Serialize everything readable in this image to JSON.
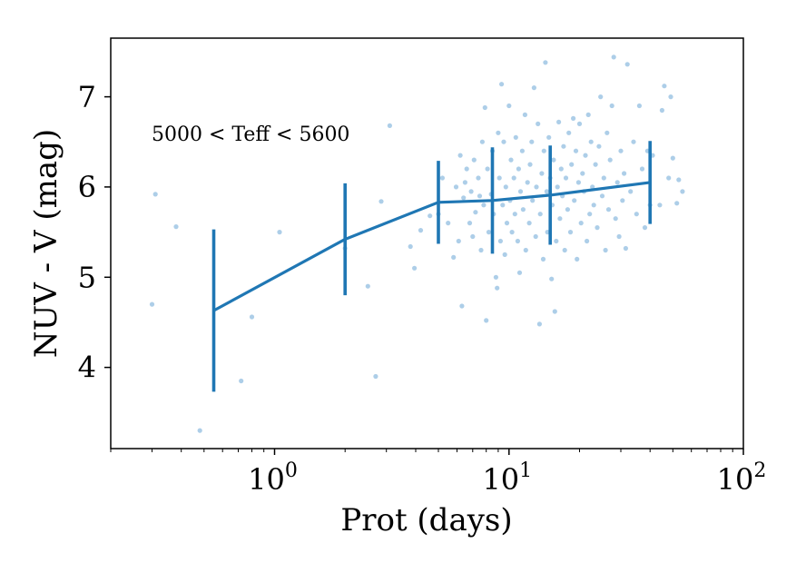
{
  "chart_data": {
    "type": "scatter",
    "xlabel": "Prot (days)",
    "ylabel": "NUV - V (mag)",
    "xscale": "log",
    "xlim": [
      0.2,
      100
    ],
    "ylim": [
      3.1,
      7.65
    ],
    "x_ticks": [
      {
        "value": 1,
        "base": "10",
        "exp": "0"
      },
      {
        "value": 10,
        "base": "10",
        "exp": "1"
      },
      {
        "value": 100,
        "base": "10",
        "exp": "2"
      }
    ],
    "y_ticks": [
      4,
      5,
      6,
      7
    ],
    "annotation": "5000 < Teff < 5600",
    "colors": {
      "series": "#1f77b4",
      "points": "#6aa6d6"
    },
    "points": [
      [
        0.3,
        4.7
      ],
      [
        0.31,
        5.92
      ],
      [
        0.38,
        5.56
      ],
      [
        0.48,
        3.3
      ],
      [
        0.72,
        3.85
      ],
      [
        0.8,
        4.56
      ],
      [
        1.05,
        5.5
      ],
      [
        2.0,
        5.32
      ],
      [
        2.5,
        4.9
      ],
      [
        2.7,
        3.9
      ],
      [
        2.85,
        5.84
      ],
      [
        3.1,
        6.68
      ],
      [
        3.8,
        5.34
      ],
      [
        3.95,
        5.1
      ],
      [
        4.2,
        5.52
      ],
      [
        4.6,
        5.68
      ],
      [
        5.0,
        5.7
      ],
      [
        5.2,
        6.1
      ],
      [
        5.5,
        5.6
      ],
      [
        5.8,
        5.22
      ],
      [
        5.95,
        6.0
      ],
      [
        6.1,
        5.4
      ],
      [
        6.2,
        6.35
      ],
      [
        6.3,
        4.68
      ],
      [
        6.4,
        5.88
      ],
      [
        6.5,
        6.05
      ],
      [
        6.6,
        6.2
      ],
      [
        6.8,
        5.6
      ],
      [
        6.9,
        5.95
      ],
      [
        7.0,
        5.45
      ],
      [
        7.1,
        6.3
      ],
      [
        7.2,
        5.72
      ],
      [
        7.4,
        6.1
      ],
      [
        7.5,
        5.9
      ],
      [
        7.6,
        5.3
      ],
      [
        7.7,
        6.5
      ],
      [
        7.8,
        5.8
      ],
      [
        7.9,
        6.88
      ],
      [
        8.0,
        4.52
      ],
      [
        8.1,
        6.2
      ],
      [
        8.2,
        5.5
      ],
      [
        8.4,
        5.92
      ],
      [
        8.5,
        6.4
      ],
      [
        8.6,
        5.7
      ],
      [
        8.8,
        5.0
      ],
      [
        8.9,
        4.88
      ],
      [
        9.0,
        6.6
      ],
      [
        9.1,
        6.1
      ],
      [
        9.2,
        5.4
      ],
      [
        9.3,
        7.14
      ],
      [
        9.4,
        5.8
      ],
      [
        9.5,
        6.5
      ],
      [
        9.6,
        5.25
      ],
      [
        9.7,
        6.0
      ],
      [
        9.8,
        5.6
      ],
      [
        10.0,
        6.9
      ],
      [
        10.1,
        5.85
      ],
      [
        10.2,
        6.3
      ],
      [
        10.3,
        5.5
      ],
      [
        10.5,
        6.1
      ],
      [
        10.6,
        5.7
      ],
      [
        10.7,
        6.55
      ],
      [
        10.9,
        5.4
      ],
      [
        11.0,
        6.2
      ],
      [
        11.1,
        5.05
      ],
      [
        11.2,
        5.95
      ],
      [
        11.4,
        6.4
      ],
      [
        11.5,
        5.75
      ],
      [
        11.7,
        6.8
      ],
      [
        11.8,
        5.3
      ],
      [
        12.0,
        6.05
      ],
      [
        12.2,
        5.6
      ],
      [
        12.3,
        6.25
      ],
      [
        12.5,
        6.5
      ],
      [
        12.6,
        5.85
      ],
      [
        12.8,
        7.1
      ],
      [
        13.0,
        5.45
      ],
      [
        13.1,
        6.0
      ],
      [
        13.3,
        6.7
      ],
      [
        13.5,
        4.48
      ],
      [
        13.6,
        5.7
      ],
      [
        13.8,
        6.15
      ],
      [
        14.0,
        5.2
      ],
      [
        14.1,
        6.4
      ],
      [
        14.3,
        7.38
      ],
      [
        14.5,
        5.95
      ],
      [
        14.6,
        5.5
      ],
      [
        14.8,
        6.55
      ],
      [
        15.0,
        6.1
      ],
      [
        15.2,
        4.98
      ],
      [
        15.3,
        5.8
      ],
      [
        15.5,
        6.3
      ],
      [
        15.7,
        4.62
      ],
      [
        15.9,
        5.4
      ],
      [
        16.1,
        6.0
      ],
      [
        16.3,
        6.72
      ],
      [
        16.5,
        5.65
      ],
      [
        16.7,
        6.2
      ],
      [
        16.9,
        5.9
      ],
      [
        17.1,
        6.45
      ],
      [
        17.3,
        5.3
      ],
      [
        17.5,
        6.1
      ],
      [
        17.8,
        5.75
      ],
      [
        18.0,
        6.6
      ],
      [
        18.3,
        5.5
      ],
      [
        18.5,
        6.25
      ],
      [
        18.8,
        6.76
      ],
      [
        19.0,
        5.85
      ],
      [
        19.3,
        6.4
      ],
      [
        19.5,
        5.2
      ],
      [
        19.8,
        6.05
      ],
      [
        20.0,
        6.7
      ],
      [
        20.3,
        5.6
      ],
      [
        20.6,
        6.15
      ],
      [
        20.9,
        5.95
      ],
      [
        21.2,
        6.35
      ],
      [
        21.5,
        5.4
      ],
      [
        21.8,
        6.8
      ],
      [
        22.1,
        5.7
      ],
      [
        22.4,
        6.5
      ],
      [
        22.7,
        6.0
      ],
      [
        23.0,
        5.8
      ],
      [
        23.4,
        6.25
      ],
      [
        23.8,
        5.55
      ],
      [
        24.2,
        6.45
      ],
      [
        24.6,
        7.0
      ],
      [
        25.0,
        5.9
      ],
      [
        25.4,
        6.1
      ],
      [
        25.8,
        5.3
      ],
      [
        26.2,
        6.6
      ],
      [
        26.6,
        5.75
      ],
      [
        27.0,
        6.3
      ],
      [
        27.5,
        6.9
      ],
      [
        28.0,
        7.44
      ],
      [
        28.5,
        5.65
      ],
      [
        29.0,
        6.05
      ],
      [
        29.5,
        5.45
      ],
      [
        30.0,
        6.4
      ],
      [
        30.5,
        5.85
      ],
      [
        31.0,
        6.15
      ],
      [
        31.5,
        5.32
      ],
      [
        32.0,
        7.36
      ],
      [
        33.0,
        5.95
      ],
      [
        34.0,
        6.5
      ],
      [
        35.0,
        5.7
      ],
      [
        36.0,
        6.9
      ],
      [
        37.0,
        6.2
      ],
      [
        38.0,
        5.55
      ],
      [
        39.0,
        6.4
      ],
      [
        40.0,
        5.8
      ],
      [
        41.0,
        6.35
      ],
      [
        44.0,
        5.8
      ],
      [
        45.0,
        6.85
      ],
      [
        46.0,
        7.12
      ],
      [
        48.0,
        6.1
      ],
      [
        49.0,
        7.0
      ],
      [
        50.0,
        6.32
      ],
      [
        52.0,
        5.82
      ],
      [
        53.0,
        6.08
      ],
      [
        55.0,
        5.95
      ]
    ],
    "series": [
      {
        "x": [
          0.55,
          2.0,
          5.0,
          8.5,
          15.0,
          40.0
        ],
        "y": [
          4.63,
          5.42,
          5.83,
          5.85,
          5.91,
          6.05
        ],
        "yerr": [
          0.9,
          0.62,
          0.46,
          0.59,
          0.55,
          0.46
        ]
      }
    ]
  }
}
